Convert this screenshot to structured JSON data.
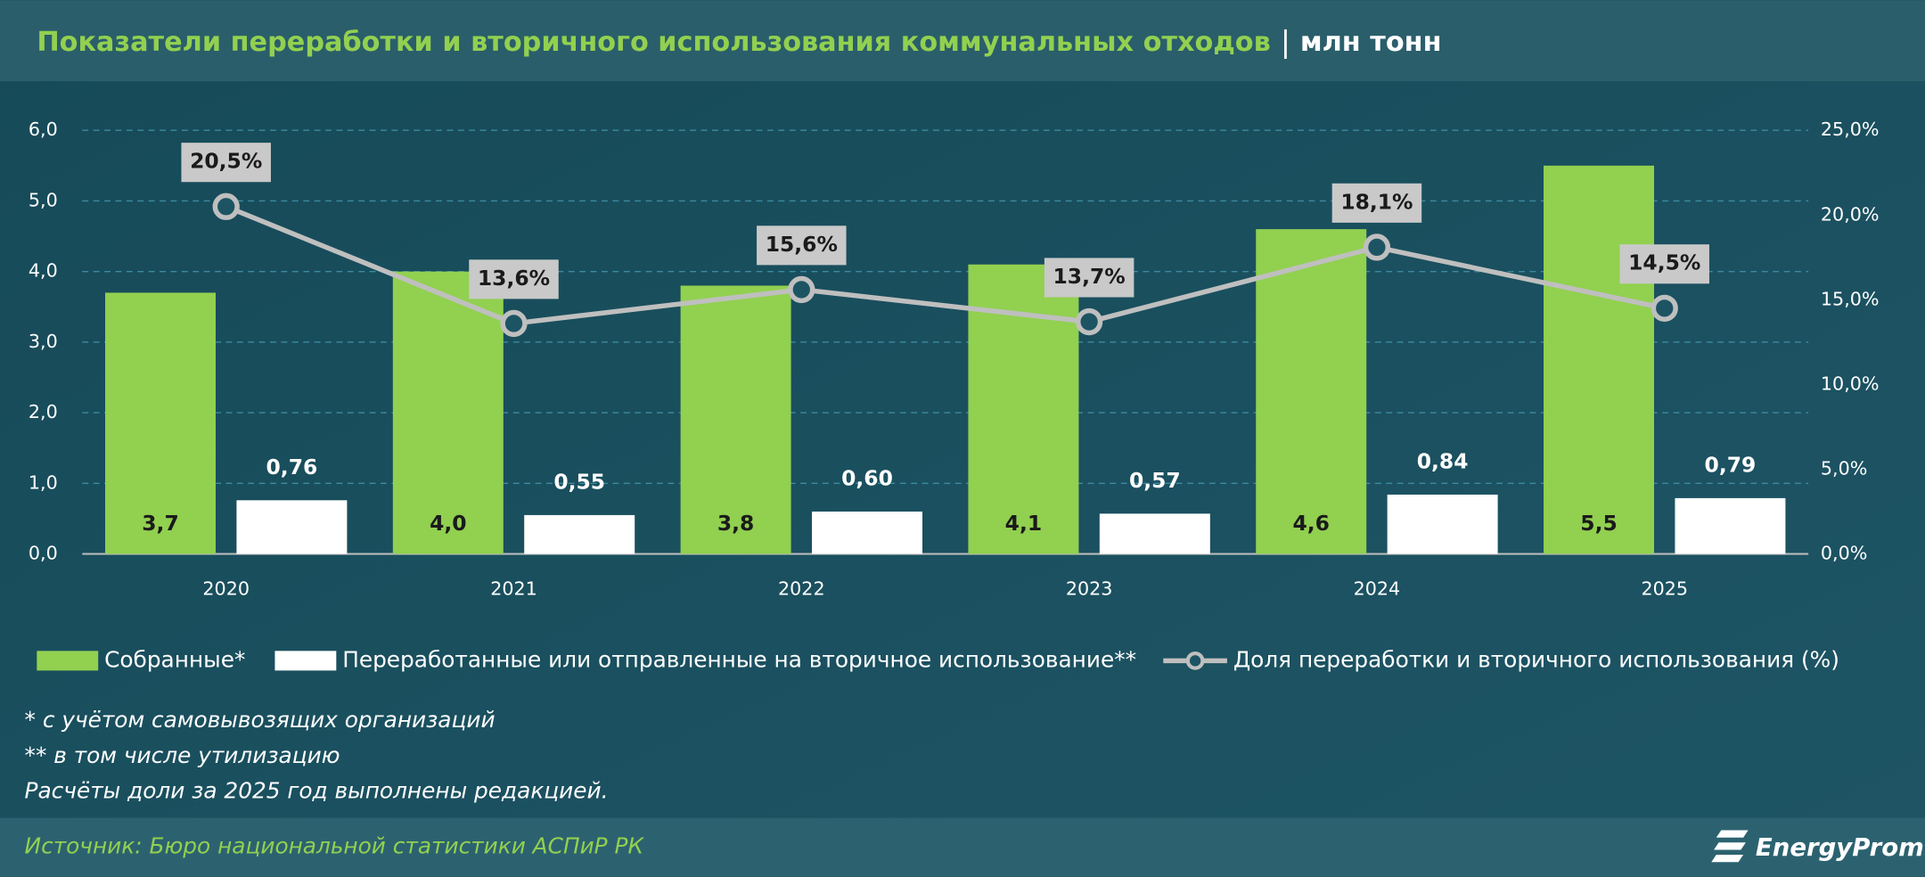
{
  "header": {
    "title": "Показатели переработки и вторичного использования коммунальных отходов",
    "unit": "млн тонн"
  },
  "chart_data": {
    "type": "bar",
    "categories": [
      "2020",
      "2021",
      "2022",
      "2023",
      "2024",
      "2025"
    ],
    "series": [
      {
        "name": "Собранные*",
        "color": "#92d050",
        "values": [
          3.7,
          4.0,
          3.8,
          4.1,
          4.6,
          5.5
        ],
        "value_labels": [
          "3,7",
          "4,0",
          "3,8",
          "4,1",
          "4,6",
          "5,5"
        ]
      },
      {
        "name": "Переработанные или отправленные на вторичное использование**",
        "color": "#ffffff",
        "values": [
          0.76,
          0.55,
          0.6,
          0.57,
          0.84,
          0.79
        ],
        "value_labels": [
          "0,76",
          "0,55",
          "0,60",
          "0,57",
          "0,84",
          "0,79"
        ]
      },
      {
        "name": "Доля переработки и вторичного использования (%)",
        "type": "line",
        "axis": "y2",
        "color": "#bfbfbf",
        "values": [
          20.5,
          13.6,
          15.6,
          13.7,
          18.1,
          14.5
        ],
        "value_labels": [
          "20,5%",
          "13,6%",
          "15,6%",
          "13,7%",
          "18,1%",
          "14,5%"
        ]
      }
    ],
    "ylim": [
      0,
      6
    ],
    "yticks": [
      {
        "value": 0,
        "label": "0,0"
      },
      {
        "value": 1,
        "label": "1,0"
      },
      {
        "value": 2,
        "label": "2,0"
      },
      {
        "value": 3,
        "label": "3,0"
      },
      {
        "value": 4,
        "label": "4,0"
      },
      {
        "value": 5,
        "label": "5,0"
      },
      {
        "value": 6,
        "label": "6,0"
      }
    ],
    "y2lim": [
      0,
      25
    ],
    "y2ticks": [
      {
        "value": 0,
        "label": "0,0%"
      },
      {
        "value": 5,
        "label": "5,0%"
      },
      {
        "value": 10,
        "label": "10,0%"
      },
      {
        "value": 15,
        "label": "15,0%"
      },
      {
        "value": 20,
        "label": "20,0%"
      },
      {
        "value": 25,
        "label": "25,0%"
      }
    ],
    "grid": true
  },
  "notes": [
    "* с учётом самовывозящих организаций",
    "** в том числе утилизацию",
    "Расчёты доли за 2025 год выполнены редакцией."
  ],
  "footer": {
    "source": "Источник: Бюро национальной статистики АСПиР РК",
    "logo": "EnergyProm"
  }
}
